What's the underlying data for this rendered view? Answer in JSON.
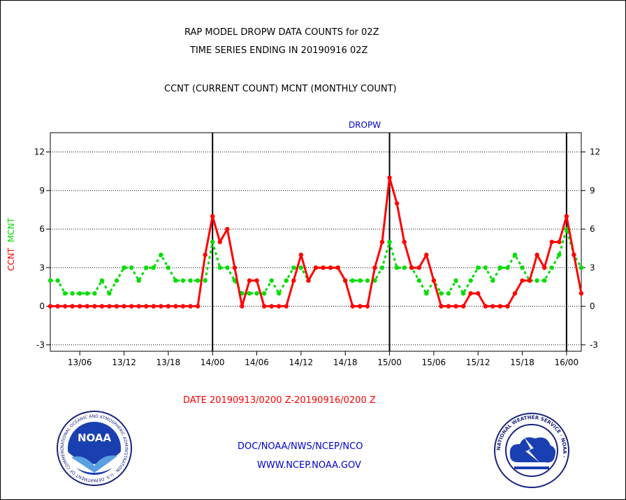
{
  "header": {
    "line1": "RAP MODEL DROPW DATA COUNTS for 02Z",
    "line2": "TIME SERIES ENDING IN 20190916 02Z",
    "line3": "CCNT (CURRENT COUNT) MCNT (MONTHLY COUNT)"
  },
  "footer": {
    "date_range": "DATE 20190913/0200 Z-20190916/0200 Z",
    "org": "DOC/NOAA/NWS/NCEP/NCO",
    "url": "WWW.NCEP.NOAA.GOV"
  },
  "logos": {
    "noaa_text": "NOAA",
    "noaa_ring": "NATIONAL OCEANIC AND ATMOSPHERIC ADMINISTRATION · U.S. DEPARTMENT OF COMMERCE ·",
    "nws_ring": "NATIONAL WEATHER SERVICE · NOAA ·"
  },
  "colors": {
    "ccnt": "#ff0000",
    "mcnt": "#00dd00",
    "title": "#0000cc",
    "axis": "#000000"
  },
  "chart_data": {
    "type": "line",
    "title": "DROPW",
    "ylabel_left": [
      "CCNT",
      "MCNT"
    ],
    "ylim": [
      -3.5,
      13.5
    ],
    "yticks": [
      -3,
      0,
      3,
      6,
      9,
      12
    ],
    "xlim_hours": [
      0,
      72
    ],
    "xticks": [
      {
        "label": "13/06",
        "hour": 4
      },
      {
        "label": "13/12",
        "hour": 10
      },
      {
        "label": "13/18",
        "hour": 16
      },
      {
        "label": "14/00",
        "hour": 22
      },
      {
        "label": "14/06",
        "hour": 28
      },
      {
        "label": "14/12",
        "hour": 34
      },
      {
        "label": "14/18",
        "hour": 40
      },
      {
        "label": "15/00",
        "hour": 46
      },
      {
        "label": "15/06",
        "hour": 52
      },
      {
        "label": "15/12",
        "hour": 58
      },
      {
        "label": "15/18",
        "hour": 64
      },
      {
        "label": "16/00",
        "hour": 70
      }
    ],
    "day_lines": [
      22,
      46,
      70
    ],
    "grid": true,
    "series": [
      {
        "name": "CCNT",
        "values": [
          0,
          0,
          0,
          0,
          0,
          0,
          0,
          0,
          0,
          0,
          0,
          0,
          0,
          0,
          0,
          0,
          0,
          0,
          0,
          0,
          0,
          4,
          7,
          5,
          6,
          3,
          0,
          2,
          2,
          0,
          0,
          0,
          0,
          2,
          4,
          2,
          3,
          3,
          3,
          3,
          2,
          0,
          0,
          0,
          3,
          5,
          10,
          8,
          5,
          3,
          3,
          4,
          2,
          0,
          0,
          0,
          0,
          1,
          1,
          0,
          0,
          0,
          0,
          1,
          2,
          2,
          4,
          3,
          5,
          5,
          7,
          4,
          1
        ]
      },
      {
        "name": "MCNT",
        "values": [
          2,
          2,
          1,
          1,
          1,
          1,
          1,
          2,
          1,
          2,
          3,
          3,
          2,
          3,
          3,
          4,
          3,
          2,
          2,
          2,
          2,
          2,
          5,
          3,
          3,
          2,
          1,
          1,
          1,
          1,
          2,
          1,
          2,
          3,
          3,
          2,
          3,
          3,
          3,
          3,
          2,
          2,
          2,
          2,
          2,
          3,
          5,
          3,
          3,
          3,
          2,
          1,
          2,
          1,
          1,
          2,
          1,
          2,
          3,
          3,
          2,
          3,
          3,
          4,
          3,
          2,
          2,
          2,
          3,
          4,
          6,
          4,
          3
        ]
      }
    ]
  }
}
